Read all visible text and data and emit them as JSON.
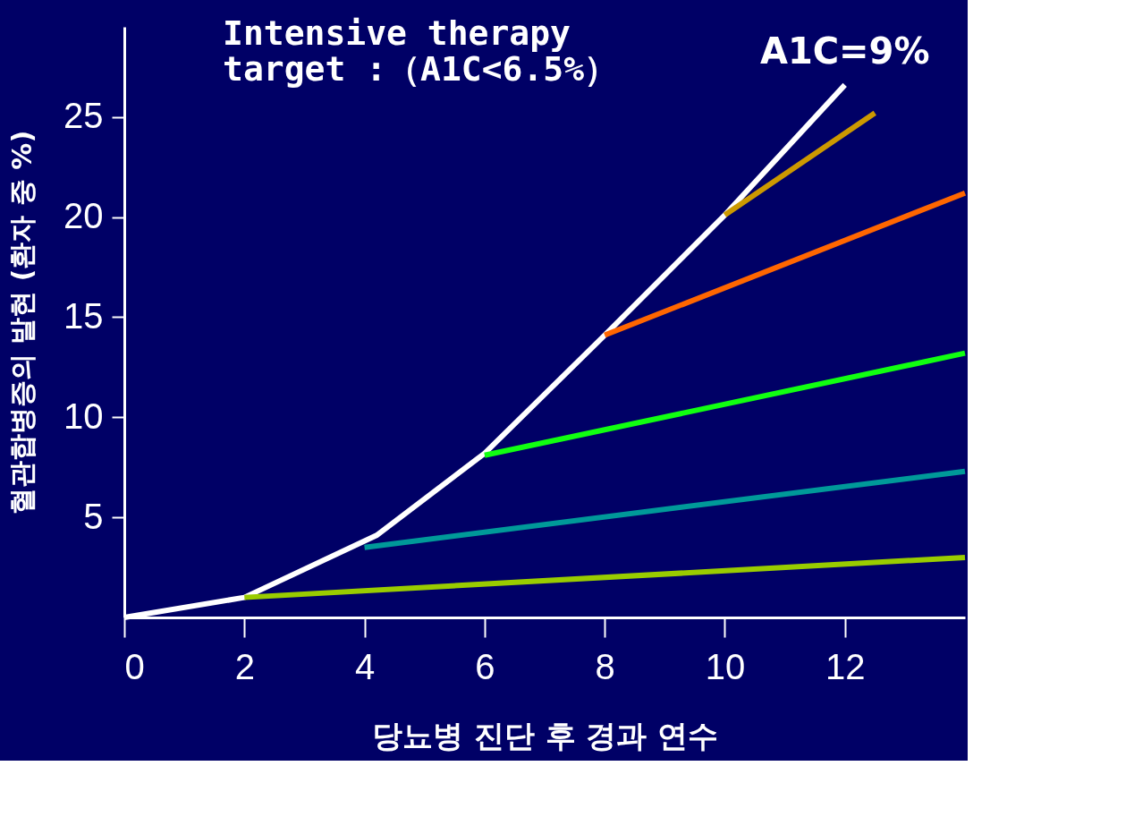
{
  "chart_data": {
    "type": "line",
    "xlabel": "당뇨병 진단 후 경과 연수",
    "ylabel": "혈관합병증의 발현 (환자 중 %)",
    "xlim": [
      0,
      14
    ],
    "ylim": [
      0,
      29.5
    ],
    "xticks": [
      0,
      2,
      4,
      6,
      8,
      10,
      12
    ],
    "yticks": [
      5,
      10,
      15,
      20,
      25
    ],
    "grid": false,
    "legend": false,
    "marker": "none",
    "line_style": "solid",
    "series": [
      {
        "color": "#ffffff",
        "x": [
          0,
          2,
          4.2,
          6,
          8,
          10,
          12
        ],
        "values": [
          0,
          1.0,
          4.1,
          8.2,
          14.1,
          20.1,
          26.6
        ]
      },
      {
        "color": "#99cc00",
        "x": [
          2,
          14
        ],
        "values": [
          1.0,
          3.0
        ]
      },
      {
        "color": "#009999",
        "x": [
          4,
          14
        ],
        "values": [
          3.5,
          7.3
        ]
      },
      {
        "color": "#11ff11",
        "x": [
          6,
          14
        ],
        "values": [
          8.1,
          13.2
        ]
      },
      {
        "color": "#ff6600",
        "x": [
          8,
          14
        ],
        "values": [
          14.1,
          21.2
        ]
      },
      {
        "color": "#cc9900",
        "x": [
          10,
          12.5
        ],
        "values": [
          20.1,
          25.2
        ]
      }
    ],
    "annotations": [
      "Intensive therapy\ntarget :（A1C<6.5%）",
      {
        "text": "A1C=9%",
        "x": 12,
        "y": 26.6
      }
    ]
  }
}
